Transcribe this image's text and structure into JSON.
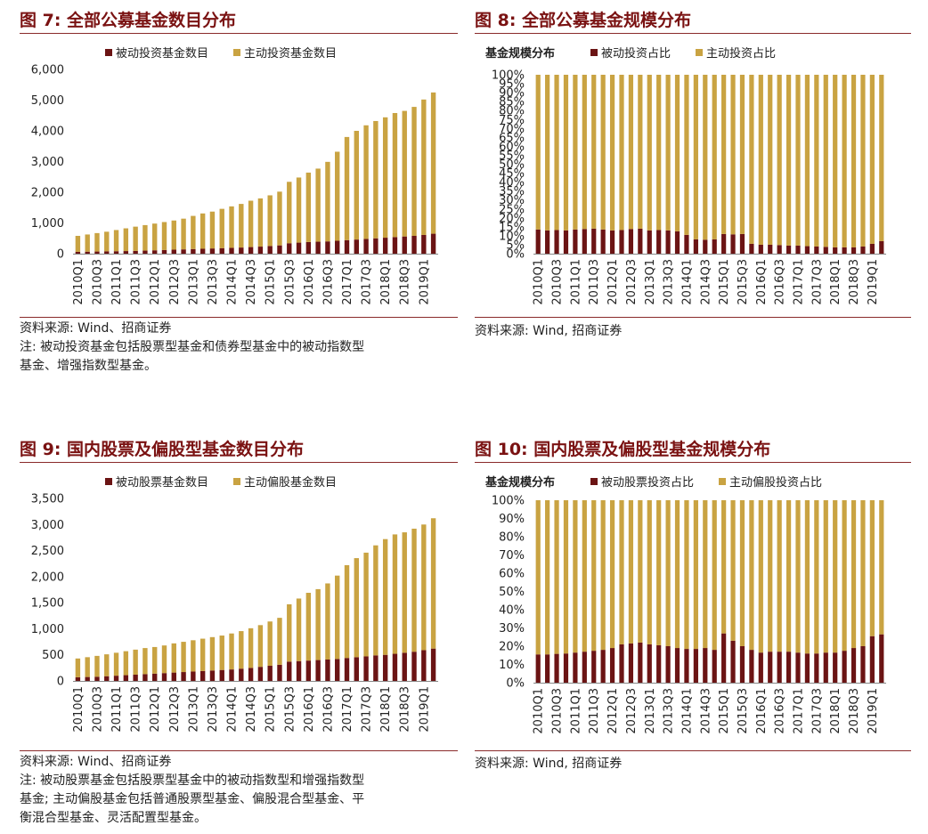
{
  "colors": {
    "passive": "#6b1414",
    "active": "#c9a342",
    "title": "#7a1212"
  },
  "panels": [
    {
      "title": "图 7:  全部公募基金数目分布",
      "source": "资料来源:  Wind、招商证券",
      "notes": [
        "注:  被动投资基金包括股票型基金和债券型基金中的被动指数型",
        "基金、增强指数型基金。"
      ],
      "chart_data": {
        "type": "bar",
        "stacked": true,
        "legend_position": "top",
        "legend_label": "",
        "ylim": [
          0,
          6000
        ],
        "y_ticks": [
          "0",
          "1,000",
          "2,000",
          "3,000",
          "4,000",
          "5,000",
          "6,000"
        ],
        "categories": [
          "2010Q1",
          "2010Q2",
          "2010Q3",
          "2010Q4",
          "2011Q1",
          "2011Q2",
          "2011Q3",
          "2011Q4",
          "2012Q1",
          "2012Q2",
          "2012Q3",
          "2012Q4",
          "2013Q1",
          "2013Q2",
          "2013Q3",
          "2013Q4",
          "2014Q1",
          "2014Q2",
          "2014Q3",
          "2014Q4",
          "2015Q1",
          "2015Q2",
          "2015Q3",
          "2015Q4",
          "2016Q1",
          "2016Q2",
          "2016Q3",
          "2016Q4",
          "2017Q1",
          "2017Q2",
          "2017Q3",
          "2017Q4",
          "2018Q1",
          "2018Q2",
          "2018Q3",
          "2018Q4",
          "2019Q1",
          "2019Q2"
        ],
        "x_tick_labels": [
          "2010Q1",
          "2010Q3",
          "2011Q1",
          "2011Q3",
          "2012Q1",
          "2012Q3",
          "2013Q1",
          "2013Q3",
          "2014Q1",
          "2014Q3",
          "2015Q1",
          "2015Q3",
          "2016Q1",
          "2016Q3",
          "2017Q1",
          "2017Q3",
          "2018Q1",
          "2018Q3",
          "2019Q1"
        ],
        "series": [
          {
            "name": "被动投资基金数目",
            "values": [
              60,
              65,
              70,
              75,
              80,
              85,
              90,
              100,
              110,
              120,
              130,
              140,
              150,
              160,
              170,
              180,
              190,
              200,
              215,
              230,
              250,
              270,
              340,
              360,
              380,
              390,
              400,
              420,
              440,
              460,
              480,
              500,
              520,
              540,
              560,
              580,
              610,
              650
            ]
          },
          {
            "name": "主动投资基金数目",
            "values": [
              520,
              560,
              600,
              640,
              690,
              740,
              790,
              830,
              870,
              910,
              950,
              1000,
              1080,
              1150,
              1200,
              1280,
              1350,
              1420,
              1510,
              1570,
              1650,
              1750,
              2000,
              2120,
              2260,
              2380,
              2590,
              2900,
              3360,
              3540,
              3700,
              3820,
              3920,
              4040,
              4090,
              4200,
              4410,
              4600
            ]
          }
        ]
      }
    },
    {
      "title": "图 8:  全部公募基金规模分布",
      "source": "资料来源:  Wind,  招商证券",
      "notes": [],
      "chart_data": {
        "type": "bar",
        "stacked": true,
        "percent": true,
        "legend_position": "top",
        "legend_label": "基金规模分布",
        "ylim": [
          0,
          100
        ],
        "y_ticks": [
          "0%",
          "5%",
          "10%",
          "15%",
          "20%",
          "25%",
          "30%",
          "35%",
          "40%",
          "45%",
          "50%",
          "55%",
          "60%",
          "65%",
          "70%",
          "75%",
          "80%",
          "85%",
          "90%",
          "95%",
          "100%"
        ],
        "categories": [
          "2010Q1",
          "2010Q2",
          "2010Q3",
          "2010Q4",
          "2011Q1",
          "2011Q2",
          "2011Q3",
          "2011Q4",
          "2012Q1",
          "2012Q2",
          "2012Q3",
          "2012Q4",
          "2013Q1",
          "2013Q2",
          "2013Q3",
          "2013Q4",
          "2014Q1",
          "2014Q2",
          "2014Q3",
          "2014Q4",
          "2015Q1",
          "2015Q2",
          "2015Q3",
          "2015Q4",
          "2016Q1",
          "2016Q2",
          "2016Q3",
          "2016Q4",
          "2017Q1",
          "2017Q2",
          "2017Q3",
          "2017Q4",
          "2018Q1",
          "2018Q2",
          "2018Q3",
          "2018Q4",
          "2019Q1",
          "2019Q2"
        ],
        "x_tick_labels": [
          "2010Q1",
          "2010Q3",
          "2011Q1",
          "2011Q3",
          "2012Q1",
          "2012Q3",
          "2013Q1",
          "2013Q3",
          "2014Q1",
          "2014Q3",
          "2015Q1",
          "2015Q3",
          "2016Q1",
          "2016Q3",
          "2017Q1",
          "2017Q3",
          "2018Q1",
          "2018Q3",
          "2019Q1"
        ],
        "series": [
          {
            "name": "被动投资占比",
            "values": [
              13.5,
              13.0,
              13.2,
              13.0,
              13.5,
              13.8,
              14.0,
              13.5,
              13.0,
              13.2,
              13.8,
              14.0,
              13.0,
              13.2,
              13.0,
              12.5,
              10.5,
              8.0,
              7.8,
              8.0,
              11.0,
              10.8,
              11.0,
              5.5,
              5.0,
              5.0,
              4.8,
              4.5,
              4.5,
              4.2,
              4.0,
              3.8,
              3.5,
              3.5,
              3.5,
              4.0,
              5.5,
              7.0
            ]
          },
          {
            "name": "主动投资占比",
            "values": [
              86.5,
              87.0,
              86.8,
              87.0,
              86.5,
              86.2,
              86.0,
              86.5,
              87.0,
              86.8,
              86.2,
              86.0,
              87.0,
              86.8,
              87.0,
              87.5,
              89.5,
              92.0,
              92.2,
              92.0,
              89.0,
              89.2,
              89.0,
              94.5,
              95.0,
              95.0,
              95.2,
              95.5,
              95.5,
              95.8,
              96.0,
              96.2,
              96.5,
              96.5,
              96.5,
              96.0,
              94.5,
              93.0
            ]
          }
        ]
      }
    },
    {
      "title": "图 9:  国内股票及偏股型基金数目分布",
      "source": "资料来源:  Wind、招商证券",
      "notes": [
        "注:  被动股票基金包括股票型基金中的被动指数型和增强指数型",
        "基金;  主动偏股基金包括普通股票型基金、偏股混合型基金、平",
        "衡混合型基金、灵活配置型基金。"
      ],
      "chart_data": {
        "type": "bar",
        "stacked": true,
        "legend_position": "top",
        "legend_label": "",
        "ylim": [
          0,
          3500
        ],
        "y_ticks": [
          "0",
          "500",
          "1,000",
          "1,500",
          "2,000",
          "2,500",
          "3,000",
          "3,500"
        ],
        "categories": [
          "2010Q1",
          "2010Q2",
          "2010Q3",
          "2010Q4",
          "2011Q1",
          "2011Q2",
          "2011Q3",
          "2011Q4",
          "2012Q1",
          "2012Q2",
          "2012Q3",
          "2012Q4",
          "2013Q1",
          "2013Q2",
          "2013Q3",
          "2013Q4",
          "2014Q1",
          "2014Q2",
          "2014Q3",
          "2014Q4",
          "2015Q1",
          "2015Q2",
          "2015Q3",
          "2015Q4",
          "2016Q1",
          "2016Q2",
          "2016Q3",
          "2016Q4",
          "2017Q1",
          "2017Q2",
          "2017Q3",
          "2017Q4",
          "2018Q1",
          "2018Q2",
          "2018Q3",
          "2018Q4",
          "2019Q1",
          "2019Q2"
        ],
        "x_tick_labels": [
          "2010Q1",
          "2010Q3",
          "2011Q1",
          "2011Q3",
          "2012Q1",
          "2012Q3",
          "2013Q1",
          "2013Q3",
          "2014Q1",
          "2014Q3",
          "2015Q1",
          "2015Q3",
          "2016Q1",
          "2016Q3",
          "2017Q1",
          "2017Q3",
          "2018Q1",
          "2018Q3",
          "2019Q1"
        ],
        "series": [
          {
            "name": "被动股票基金数目",
            "values": [
              70,
              75,
              80,
              90,
              100,
              110,
              120,
              130,
              140,
              150,
              160,
              170,
              180,
              190,
              200,
              210,
              220,
              235,
              250,
              270,
              290,
              310,
              370,
              380,
              390,
              400,
              410,
              420,
              440,
              455,
              470,
              490,
              500,
              520,
              540,
              560,
              590,
              620
            ]
          },
          {
            "name": "主动偏股基金数目",
            "values": [
              360,
              380,
              400,
              420,
              440,
              460,
              480,
              500,
              510,
              530,
              560,
              580,
              600,
              620,
              640,
              660,
              690,
              720,
              760,
              800,
              850,
              900,
              1100,
              1200,
              1300,
              1360,
              1460,
              1600,
              1780,
              1900,
              1990,
              2110,
              2220,
              2290,
              2310,
              2360,
              2410,
              2500
            ]
          }
        ]
      }
    },
    {
      "title": "图 10:  国内股票及偏股型基金规模分布",
      "source": "资料来源:  Wind,  招商证券",
      "notes": [],
      "chart_data": {
        "type": "bar",
        "stacked": true,
        "percent": true,
        "legend_position": "top",
        "legend_label": "基金规模分布",
        "ylim": [
          0,
          100
        ],
        "y_ticks": [
          "0%",
          "10%",
          "20%",
          "30%",
          "40%",
          "50%",
          "60%",
          "70%",
          "80%",
          "90%",
          "100%"
        ],
        "categories": [
          "2010Q1",
          "2010Q2",
          "2010Q3",
          "2010Q4",
          "2011Q1",
          "2011Q2",
          "2011Q3",
          "2011Q4",
          "2012Q1",
          "2012Q2",
          "2012Q3",
          "2012Q4",
          "2013Q1",
          "2013Q2",
          "2013Q3",
          "2013Q4",
          "2014Q1",
          "2014Q2",
          "2014Q3",
          "2014Q4",
          "2015Q1",
          "2015Q2",
          "2015Q3",
          "2015Q4",
          "2016Q1",
          "2016Q2",
          "2016Q3",
          "2016Q4",
          "2017Q1",
          "2017Q2",
          "2017Q3",
          "2017Q4",
          "2018Q1",
          "2018Q2",
          "2018Q3",
          "2018Q4",
          "2019Q1",
          "2019Q2"
        ],
        "x_tick_labels": [
          "2010Q1",
          "2010Q3",
          "2011Q1",
          "2011Q3",
          "2012Q1",
          "2012Q3",
          "2013Q1",
          "2013Q3",
          "2014Q1",
          "2014Q3",
          "2015Q1",
          "2015Q3",
          "2016Q1",
          "2016Q3",
          "2017Q1",
          "2017Q3",
          "2018Q1",
          "2018Q3",
          "2019Q1"
        ],
        "series": [
          {
            "name": "被动股票投资占比",
            "values": [
              15.5,
              15.5,
              15.8,
              16.0,
              16.5,
              17.0,
              17.5,
              18.0,
              19.0,
              21.0,
              21.5,
              22.0,
              21.0,
              20.5,
              20.0,
              19.0,
              18.5,
              18.5,
              19.0,
              18.0,
              27.0,
              23.0,
              20.0,
              18.0,
              16.5,
              17.0,
              17.0,
              17.0,
              16.5,
              16.0,
              16.0,
              16.5,
              16.5,
              17.5,
              19.0,
              20.0,
              25.5,
              26.5
            ]
          },
          {
            "name": "主动偏股投资占比",
            "values": [
              84.5,
              84.5,
              84.2,
              84.0,
              83.5,
              83.0,
              82.5,
              82.0,
              81.0,
              79.0,
              78.5,
              78.0,
              79.0,
              79.5,
              80.0,
              81.0,
              81.5,
              81.5,
              81.0,
              82.0,
              73.0,
              77.0,
              80.0,
              82.0,
              83.5,
              83.0,
              83.0,
              83.0,
              83.5,
              84.0,
              84.0,
              83.5,
              83.5,
              82.5,
              81.0,
              80.0,
              74.5,
              73.5
            ]
          }
        ]
      }
    }
  ]
}
